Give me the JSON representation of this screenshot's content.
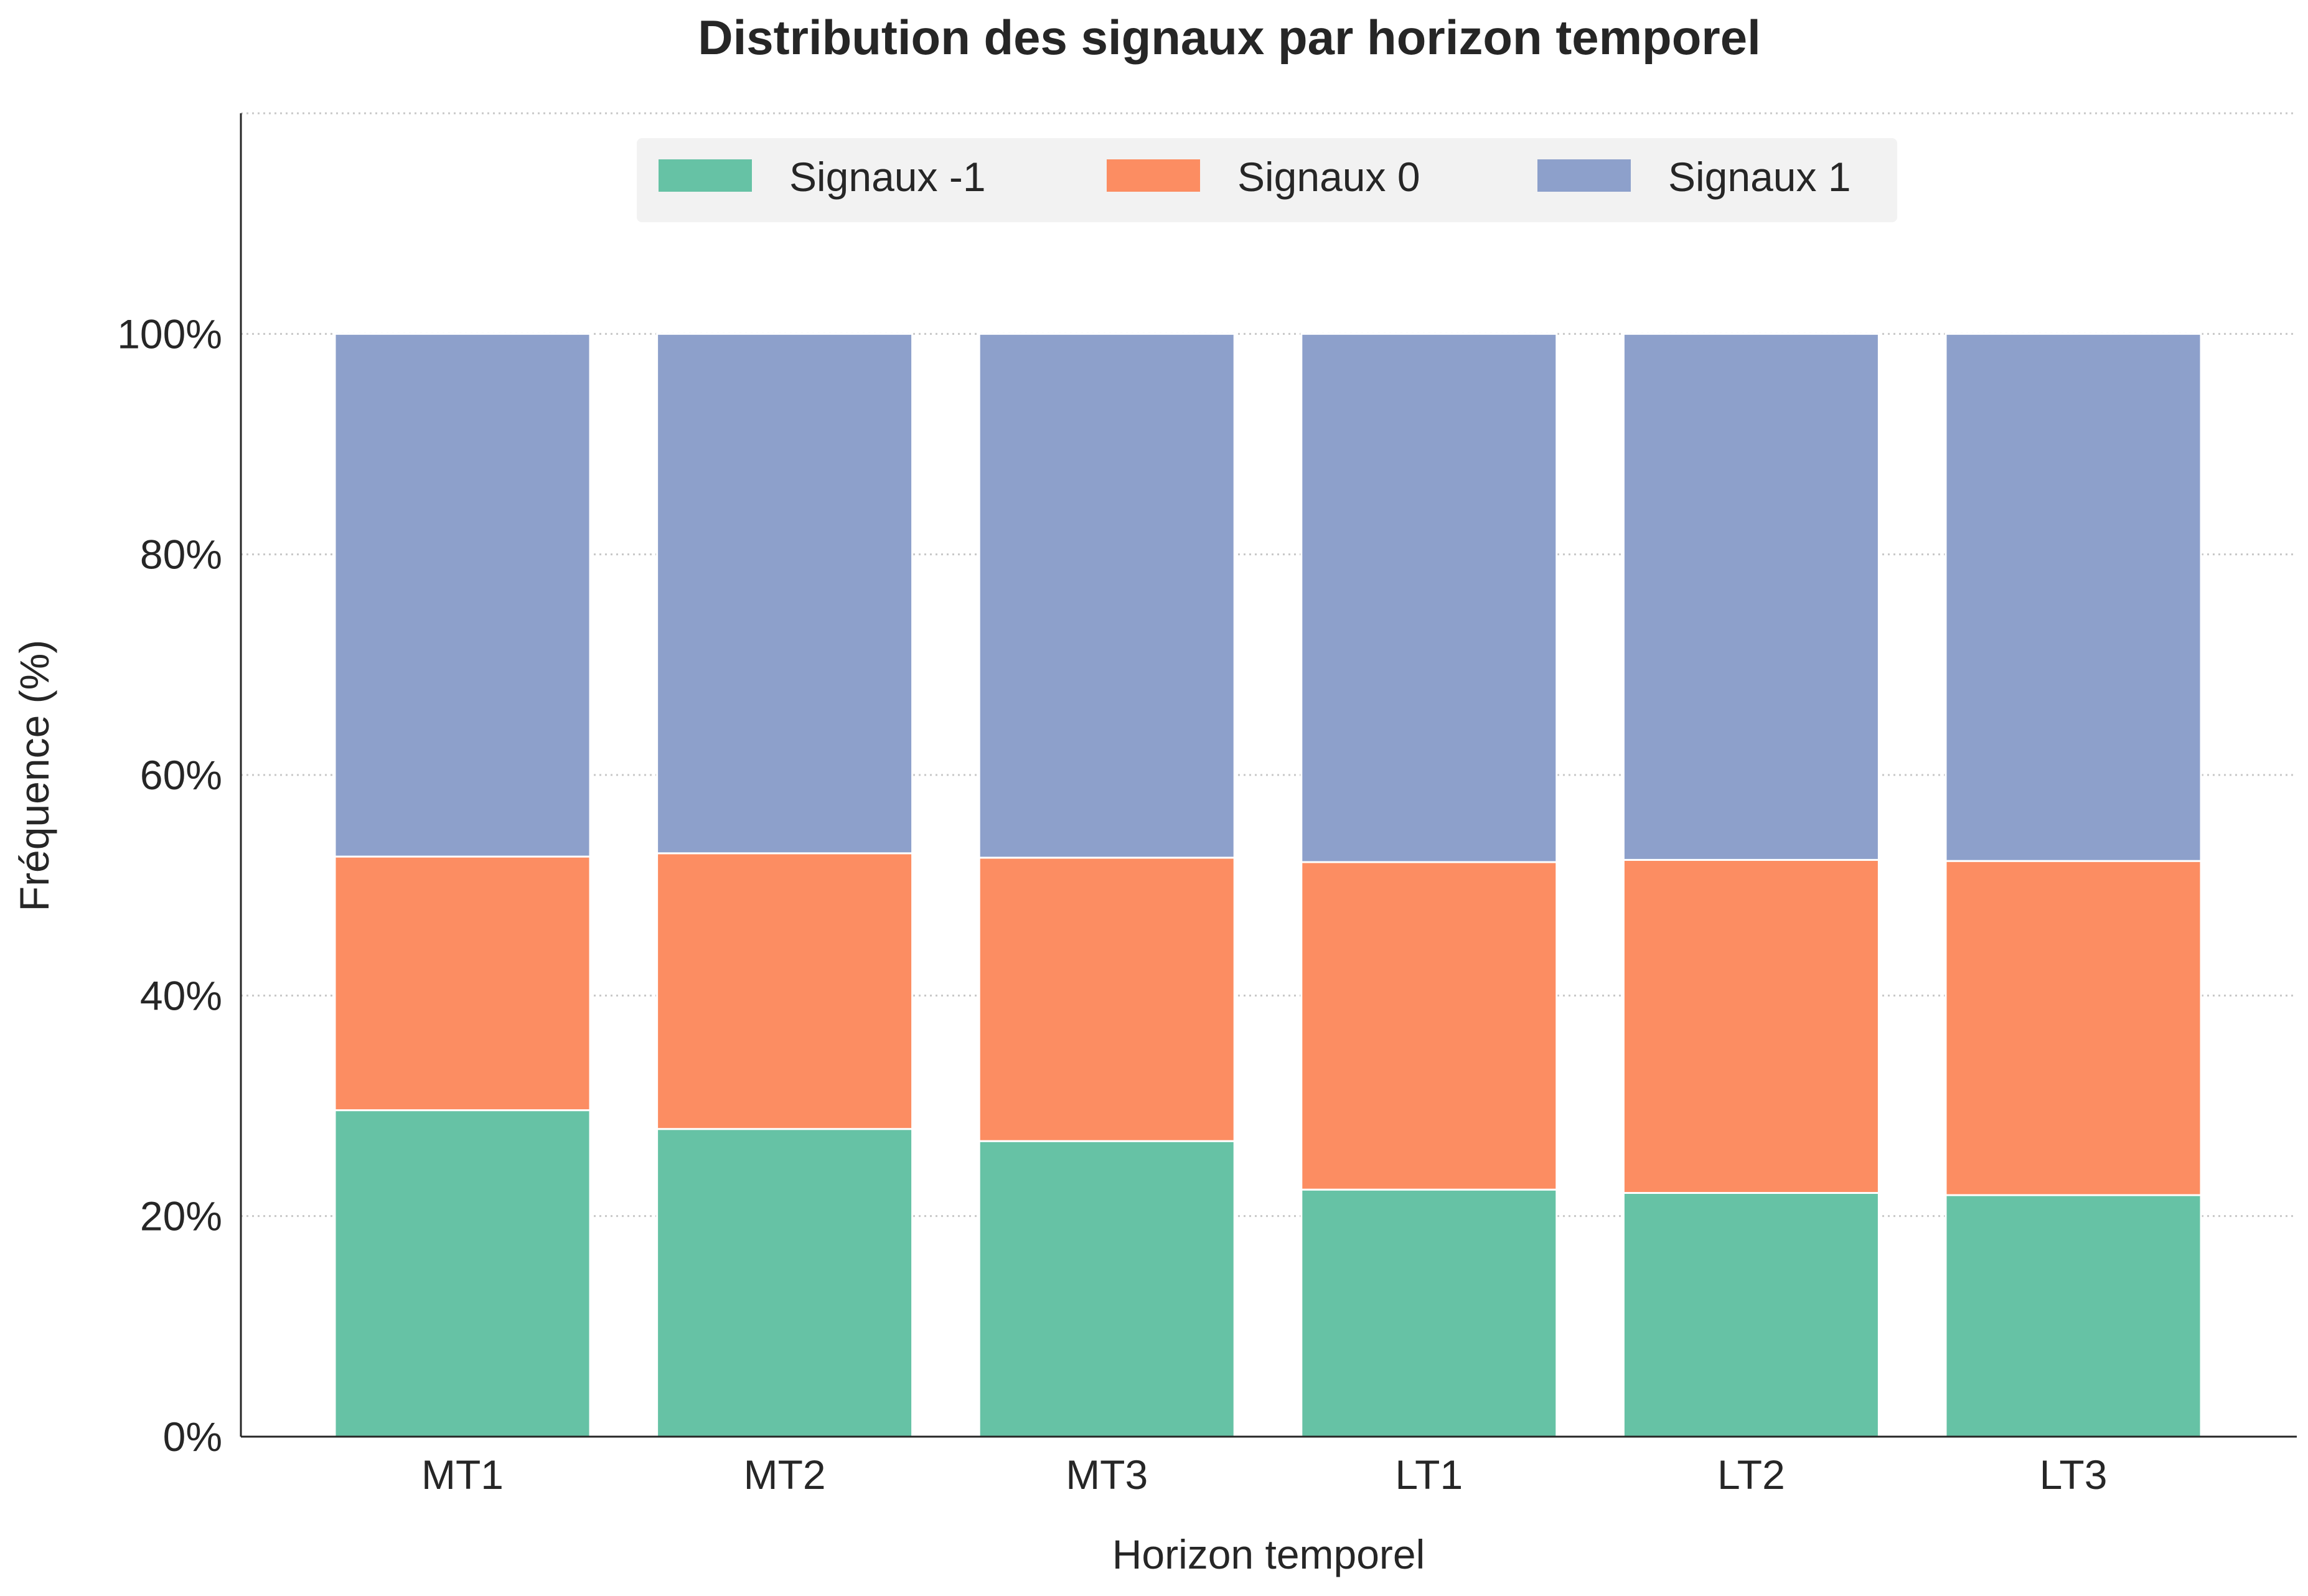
{
  "chart_data": {
    "type": "bar",
    "stacked": true,
    "title": "Distribution des signaux par horizon temporel",
    "xlabel": "Horizon temporel",
    "ylabel": "Fréquence (%)",
    "categories": [
      "MT1",
      "MT2",
      "MT3",
      "LT1",
      "LT2",
      "LT3"
    ],
    "series": [
      {
        "name": "Signaux -1",
        "color": "#66c2a5",
        "values": [
          29.6,
          27.9,
          26.8,
          22.4,
          22.1,
          21.9
        ]
      },
      {
        "name": "Signaux 0",
        "color": "#fc8d62",
        "values": [
          23.0,
          25.0,
          25.7,
          29.7,
          30.2,
          30.3
        ]
      },
      {
        "name": "Signaux 1",
        "color": "#8da0cb",
        "values": [
          47.4,
          47.1,
          47.5,
          47.9,
          47.7,
          47.8
        ]
      }
    ],
    "ylim": [
      0,
      120
    ],
    "yticks": [
      0,
      20,
      40,
      60,
      80,
      100
    ],
    "ytick_labels": [
      "0%",
      "20%",
      "40%",
      "60%",
      "80%",
      "100%"
    ],
    "grid": "y dotted",
    "legend": {
      "placement": "top-center",
      "columns": 3
    }
  }
}
